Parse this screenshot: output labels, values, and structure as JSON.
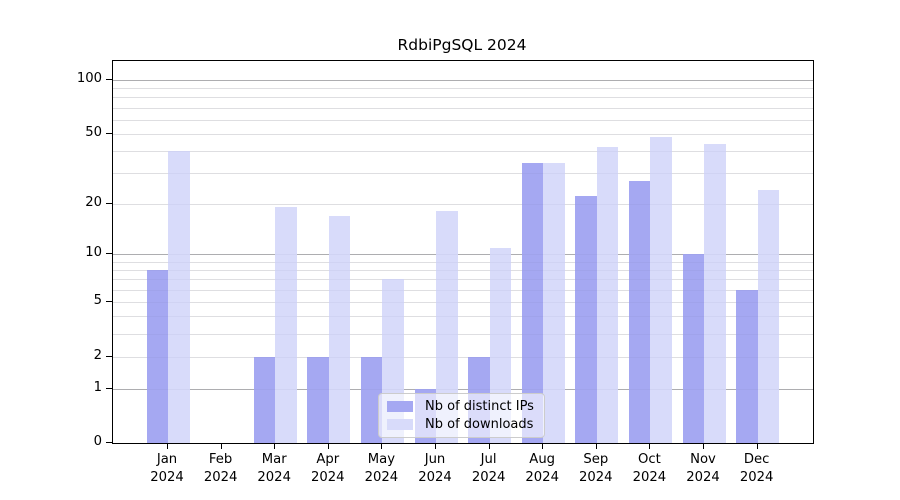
{
  "page": {
    "background": "#ffffff"
  },
  "chart_data": {
    "type": "bar",
    "title": "RdbiPgSQL 2024",
    "categories": [
      "Jan 2024",
      "Feb 2024",
      "Mar 2024",
      "Apr 2024",
      "May 2024",
      "Jun 2024",
      "Jul 2024",
      "Aug 2024",
      "Sep 2024",
      "Oct 2024",
      "Nov 2024",
      "Dec 2024"
    ],
    "x_tick_line1": [
      "Jan",
      "Feb",
      "Mar",
      "Apr",
      "May",
      "Jun",
      "Jul",
      "Aug",
      "Sep",
      "Oct",
      "Nov",
      "Dec"
    ],
    "x_tick_line2": "2024",
    "series": [
      {
        "name": "Nb of distinct IPs",
        "color": "#a5a8f2",
        "values": [
          8,
          0,
          2,
          2,
          2,
          1,
          2,
          34,
          22,
          27,
          10,
          6
        ]
      },
      {
        "name": "Nb of downloads",
        "color": "#d8dbfa",
        "values": [
          40,
          0,
          19,
          17,
          7,
          18,
          11,
          34,
          42,
          48,
          44,
          24
        ]
      }
    ],
    "yscale": "log1p",
    "ylim": [
      0,
      127
    ],
    "ytick_values": [
      0,
      1,
      2,
      5,
      10,
      20,
      50,
      100
    ],
    "ytick_labels": [
      "0",
      "1",
      "2",
      "5",
      "10",
      "20",
      "50",
      "100"
    ],
    "major_gridline_values": [
      1,
      10,
      100
    ],
    "minor_gridline_values": [
      2,
      3,
      4,
      5,
      6,
      7,
      8,
      9,
      20,
      30,
      40,
      50,
      60,
      70,
      80,
      90
    ],
    "grid": true,
    "legend": {
      "position": "inside-bottom-center",
      "items": [
        "Nb of distinct IPs",
        "Nb of downloads"
      ]
    }
  },
  "colors": {
    "bar_distinct_ips": "#a5a8f2",
    "bar_downloads": "#d8dbfa",
    "major_gridline": "#b3b3b3",
    "minor_gridline": "#e7e7e7",
    "axis_frame": "#000000",
    "tick_text": "#000000",
    "legend_border": "#cccccc",
    "legend_background": "rgba(255,255,255,0.6)"
  }
}
